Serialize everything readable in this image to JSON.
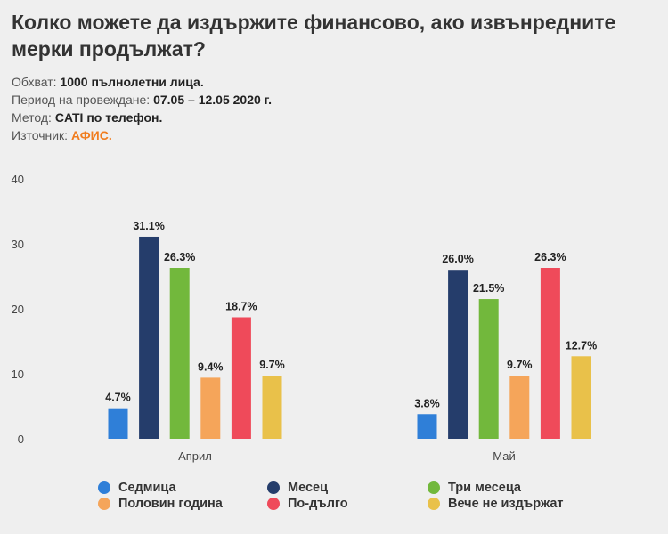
{
  "title": "Колко можете да издържите финансово, ако извънредните мерки продължат?",
  "meta": [
    {
      "label": "Обхват:",
      "value": "1000 пълнолетни лица."
    },
    {
      "label": "Период на провеждане:",
      "value": "07.05 – 12.05 2020 г."
    },
    {
      "label": "Метод:",
      "value": "CATI по телефон."
    },
    {
      "label": "Източник:",
      "value": "АФИС."
    }
  ],
  "chart_data": {
    "type": "bar",
    "categories": [
      "Април",
      "Май"
    ],
    "series": [
      {
        "name": "Седмица",
        "color": "#2f7fd8",
        "values": [
          4.7,
          3.8
        ]
      },
      {
        "name": "Месец",
        "color": "#253d6b",
        "values": [
          31.1,
          26.0
        ]
      },
      {
        "name": "Три месеца",
        "color": "#72b83c",
        "values": [
          26.3,
          21.5
        ]
      },
      {
        "name": "Половин година",
        "color": "#f5a55a",
        "values": [
          9.4,
          9.7
        ]
      },
      {
        "name": "По-дълго",
        "color": "#ef4a5a",
        "values": [
          18.7,
          26.3
        ]
      },
      {
        "name": "Вече не издържат",
        "color": "#e9c14a",
        "values": [
          9.7,
          12.7
        ]
      }
    ],
    "data_labels": [
      [
        "4.7%",
        "3.8%"
      ],
      [
        "31.1%",
        "26.0%"
      ],
      [
        "26.3%",
        "21.5%"
      ],
      [
        "9.4%",
        "9.7%"
      ],
      [
        "18.7%",
        "26.3%"
      ],
      [
        "9.7%",
        "12.7%"
      ]
    ],
    "yticks": [
      "0",
      "10",
      "20",
      "30",
      "40"
    ],
    "ylim": [
      0,
      40
    ],
    "grid": false,
    "legend": "bottom"
  }
}
